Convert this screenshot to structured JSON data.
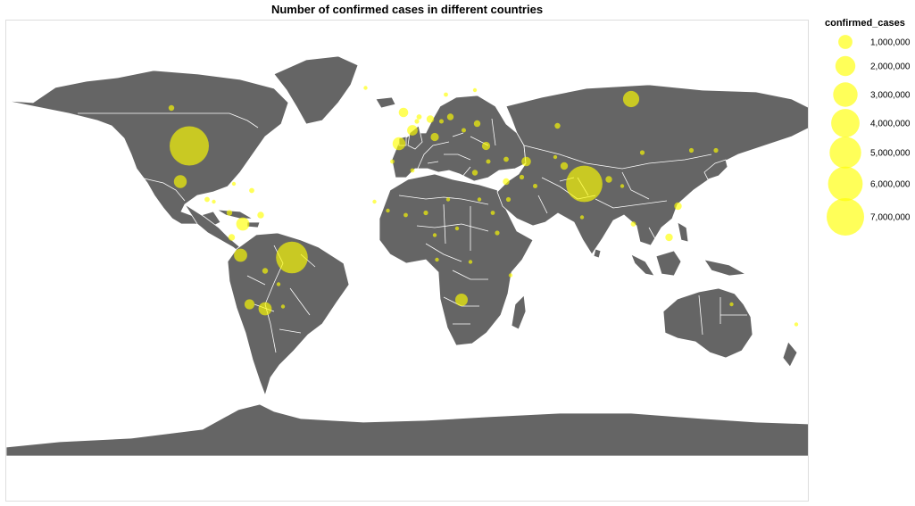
{
  "title": "Number of confirmed cases in different countries",
  "colors": {
    "land": "#656565",
    "border": "#ffffff",
    "bubble_fill": "#ffff00",
    "bubble_opacity": 0.65
  },
  "legend": {
    "title": "confirmed_cases",
    "items": [
      {
        "value": 1000000,
        "label": "1,000,000"
      },
      {
        "value": 2000000,
        "label": "2,000,000"
      },
      {
        "value": 3000000,
        "label": "3,000,000"
      },
      {
        "value": 4000000,
        "label": "4,000,000"
      },
      {
        "value": 5000000,
        "label": "5,000,000"
      },
      {
        "value": 6000000,
        "label": "6,000,000"
      },
      {
        "value": 7000000,
        "label": "7,000,000"
      }
    ]
  },
  "chart_data": {
    "type": "scatter",
    "subtype": "bubble-map",
    "projection": "equirectangular",
    "title": "Number of confirmed cases in different countries",
    "size_field": "confirmed_cases",
    "points": [
      {
        "lon": -98,
        "lat": 39,
        "confirmed_cases": 7000000
      },
      {
        "lon": 79,
        "lat": 22,
        "confirmed_cases": 6000000
      },
      {
        "lon": -52,
        "lat": -11,
        "confirmed_cases": 4600000
      },
      {
        "lon": 100,
        "lat": 60,
        "confirmed_cases": 1200000
      },
      {
        "lon": -74,
        "lat": 4,
        "confirmed_cases": 800000
      },
      {
        "lon": -75,
        "lat": -10,
        "confirmed_cases": 800000
      },
      {
        "lon": -64,
        "lat": -34,
        "confirmed_cases": 800000
      },
      {
        "lon": -4,
        "lat": 40,
        "confirmed_cases": 750000
      },
      {
        "lon": -102,
        "lat": 23,
        "confirmed_cases": 750000
      },
      {
        "lon": 24,
        "lat": -30,
        "confirmed_cases": 700000
      },
      {
        "lon": 2,
        "lat": 46,
        "confirmed_cases": 500000
      },
      {
        "lon": -71,
        "lat": -32,
        "confirmed_cases": 450000
      },
      {
        "lon": -2,
        "lat": 54,
        "confirmed_cases": 400000
      },
      {
        "lon": 53,
        "lat": 32,
        "confirmed_cases": 400000
      },
      {
        "lon": 12,
        "lat": 43,
        "confirmed_cases": 300000
      },
      {
        "lon": 35,
        "lat": 39,
        "confirmed_cases": 300000
      },
      {
        "lon": 117,
        "lat": -2,
        "confirmed_cases": 250000
      },
      {
        "lon": 121,
        "lat": 12,
        "confirmed_cases": 250000
      },
      {
        "lon": 10,
        "lat": 51,
        "confirmed_cases": 250000
      },
      {
        "lon": 70,
        "lat": 30,
        "confirmed_cases": 250000
      },
      {
        "lon": -79,
        "lat": -2,
        "confirmed_cases": 200000
      },
      {
        "lon": -66,
        "lat": 8,
        "confirmed_cases": 200000
      },
      {
        "lon": 44,
        "lat": 23,
        "confirmed_cases": 200000
      },
      {
        "lon": 90,
        "lat": 24,
        "confirmed_cases": 200000
      },
      {
        "lon": 31,
        "lat": 49,
        "confirmed_cases": 200000
      },
      {
        "lon": 19,
        "lat": 52,
        "confirmed_cases": 200000
      },
      {
        "lon": 67,
        "lat": 48,
        "confirmed_cases": 150000
      },
      {
        "lon": 30,
        "lat": 27,
        "confirmed_cases": 150000
      },
      {
        "lon": -80,
        "lat": 9,
        "confirmed_cases": 150000
      },
      {
        "lon": -64,
        "lat": -17,
        "confirmed_cases": 150000
      },
      {
        "lon": -106,
        "lat": 56,
        "confirmed_cases": 150000
      },
      {
        "lon": -90,
        "lat": 15,
        "confirmed_cases": 120000
      },
      {
        "lon": -70,
        "lat": 19,
        "confirmed_cases": 120000
      },
      {
        "lon": 44,
        "lat": 33,
        "confirmed_cases": 120000
      },
      {
        "lon": 101,
        "lat": 4,
        "confirmed_cases": 120000
      },
      {
        "lon": 105,
        "lat": 36,
        "confirmed_cases": 100000
      },
      {
        "lon": 138,
        "lat": 37,
        "confirmed_cases": 100000
      },
      {
        "lon": 127,
        "lat": 37,
        "confirmed_cases": 100000
      },
      {
        "lon": 45,
        "lat": 15,
        "confirmed_cases": 100000
      },
      {
        "lon": 8,
        "lat": 9,
        "confirmed_cases": 100000
      },
      {
        "lon": 40,
        "lat": 0,
        "confirmed_cases": 100000
      },
      {
        "lon": 51,
        "lat": 25,
        "confirmed_cases": 100000
      },
      {
        "lon": 57,
        "lat": 21,
        "confirmed_cases": 90000
      },
      {
        "lon": 25,
        "lat": 46,
        "confirmed_cases": 90000
      },
      {
        "lon": 15,
        "lat": 50,
        "confirmed_cases": 90000
      },
      {
        "lon": 2,
        "lat": 28,
        "confirmed_cases": 80000
      },
      {
        "lon": -7,
        "lat": 32,
        "confirmed_cases": 80000
      },
      {
        "lon": 38,
        "lat": 9,
        "confirmed_cases": 80000
      },
      {
        "lon": -1,
        "lat": 8,
        "confirmed_cases": 80000
      },
      {
        "lon": -58,
        "lat": -23,
        "confirmed_cases": 70000
      },
      {
        "lon": -87,
        "lat": 14,
        "confirmed_cases": 70000
      },
      {
        "lon": 145,
        "lat": -32,
        "confirmed_cases": 30000
      },
      {
        "lon": 13,
        "lat": -12,
        "confirmed_cases": 30000
      },
      {
        "lon": 46,
        "lat": -19,
        "confirmed_cases": 30000
      },
      {
        "lon": 28,
        "lat": -13,
        "confirmed_cases": 30000
      },
      {
        "lon": 32,
        "lat": 15,
        "confirmed_cases": 30000
      },
      {
        "lon": 18,
        "lat": 15,
        "confirmed_cases": 20000
      },
      {
        "lon": 22,
        "lat": 2,
        "confirmed_cases": 20000
      },
      {
        "lon": 12,
        "lat": -1,
        "confirmed_cases": 20000
      },
      {
        "lon": 30,
        "lat": 64,
        "confirmed_cases": 20000
      },
      {
        "lon": -19,
        "lat": 65,
        "confirmed_cases": 10000
      },
      {
        "lon": 17,
        "lat": 62,
        "confirmed_cases": 80000
      },
      {
        "lon": 5,
        "lat": 52,
        "confirmed_cases": 120000
      },
      {
        "lon": 4,
        "lat": 50,
        "confirmed_cases": 100000
      },
      {
        "lon": 36,
        "lat": 32,
        "confirmed_cases": 90000
      },
      {
        "lon": 66,
        "lat": 34,
        "confirmed_cases": 40000
      },
      {
        "lon": 78,
        "lat": 7,
        "confirmed_cases": 30000
      },
      {
        "lon": 96,
        "lat": 21,
        "confirmed_cases": 30000
      },
      {
        "lon": 174,
        "lat": -41,
        "confirmed_cases": 2000
      },
      {
        "lon": -56,
        "lat": -33,
        "confirmed_cases": 5000
      },
      {
        "lon": -78,
        "lat": 22,
        "confirmed_cases": 10000
      },
      {
        "lon": -9,
        "lat": 10,
        "confirmed_cases": 20000
      },
      {
        "lon": -15,
        "lat": 14,
        "confirmed_cases": 20000
      }
    ]
  }
}
